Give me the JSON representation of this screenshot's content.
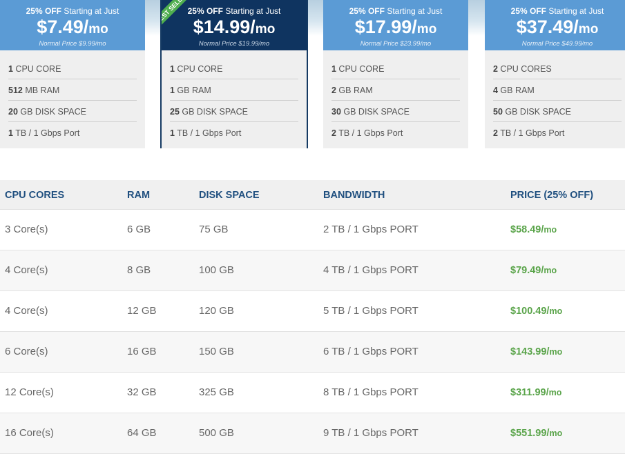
{
  "plans": [
    {
      "offer_bold": "25% OFF",
      "offer_text": " Starting at Just",
      "price": "$7.49/",
      "unit": "mo",
      "normal": "Normal Price $9.99/mo",
      "specs": [
        {
          "b": "1",
          "t": " CPU CORE"
        },
        {
          "b": "512",
          "t": " MB RAM"
        },
        {
          "b": "20",
          "t": " GB DISK SPACE"
        },
        {
          "b": "1",
          "t": " TB / 1 Gbps Port"
        }
      ]
    },
    {
      "offer_bold": "25% OFF",
      "offer_text": " Starting at Just",
      "price": "$14.99/",
      "unit": "mo",
      "normal": "Normal Price $19.99/mo",
      "ribbon": "BEST SELLER",
      "specs": [
        {
          "b": "1",
          "t": " CPU CORE"
        },
        {
          "b": "1",
          "t": " GB RAM"
        },
        {
          "b": "25",
          "t": " GB DISK SPACE"
        },
        {
          "b": "1",
          "t": " TB / 1 Gbps Port"
        }
      ]
    },
    {
      "offer_bold": "25% OFF",
      "offer_text": " Starting at Just",
      "price": "$17.99/",
      "unit": "mo",
      "normal": "Normal Price $23.99/mo",
      "specs": [
        {
          "b": "1",
          "t": " CPU CORE"
        },
        {
          "b": "2",
          "t": " GB RAM"
        },
        {
          "b": "30",
          "t": " GB DISK SPACE"
        },
        {
          "b": "2",
          "t": " TB / 1 Gbps Port"
        }
      ]
    },
    {
      "offer_bold": "25% OFF",
      "offer_text": " Starting at Just",
      "price": "$37.49/",
      "unit": "mo",
      "normal": "Normal Price $49.99/mo",
      "specs": [
        {
          "b": "2",
          "t": " CPU CORES"
        },
        {
          "b": "4",
          "t": " GB RAM"
        },
        {
          "b": "50",
          "t": " GB DISK SPACE"
        },
        {
          "b": "2",
          "t": " TB / 1 Gbps Port"
        }
      ]
    }
  ],
  "table": {
    "headers": {
      "cpu": "CPU CORES",
      "ram": "RAM",
      "disk": "DISK SPACE",
      "bandwidth": "BANDWIDTH",
      "price": "PRICE (25% OFF)"
    },
    "rows": [
      {
        "cpu": "3 Core(s)",
        "ram": "6 GB",
        "disk": "75 GB",
        "bandwidth": "2 TB / 1 Gbps PORT",
        "price": "$58.49/",
        "unit": "mo"
      },
      {
        "cpu": "4 Core(s)",
        "ram": "8 GB",
        "disk": "100 GB",
        "bandwidth": "4 TB / 1 Gbps PORT",
        "price": "$79.49/",
        "unit": "mo"
      },
      {
        "cpu": "4 Core(s)",
        "ram": "12 GB",
        "disk": "120 GB",
        "bandwidth": "5 TB / 1 Gbps PORT",
        "price": "$100.49/",
        "unit": "mo"
      },
      {
        "cpu": "6 Core(s)",
        "ram": "16 GB",
        "disk": "150 GB",
        "bandwidth": "6 TB / 1 Gbps PORT",
        "price": "$143.99/",
        "unit": "mo"
      },
      {
        "cpu": "12 Core(s)",
        "ram": "32 GB",
        "disk": "325 GB",
        "bandwidth": "8 TB / 1 Gbps PORT",
        "price": "$311.99/",
        "unit": "mo"
      },
      {
        "cpu": "16 Core(s)",
        "ram": "64 GB",
        "disk": "500 GB",
        "bandwidth": "9 TB / 1 Gbps PORT",
        "price": "$551.99/",
        "unit": "mo"
      }
    ]
  },
  "colors": {
    "card_head": "#5b9bd5",
    "featured_head": "#0f3460",
    "ribbon": "#4fae4f",
    "header_text": "#1f4f7f",
    "price_green": "#5aa44a"
  }
}
